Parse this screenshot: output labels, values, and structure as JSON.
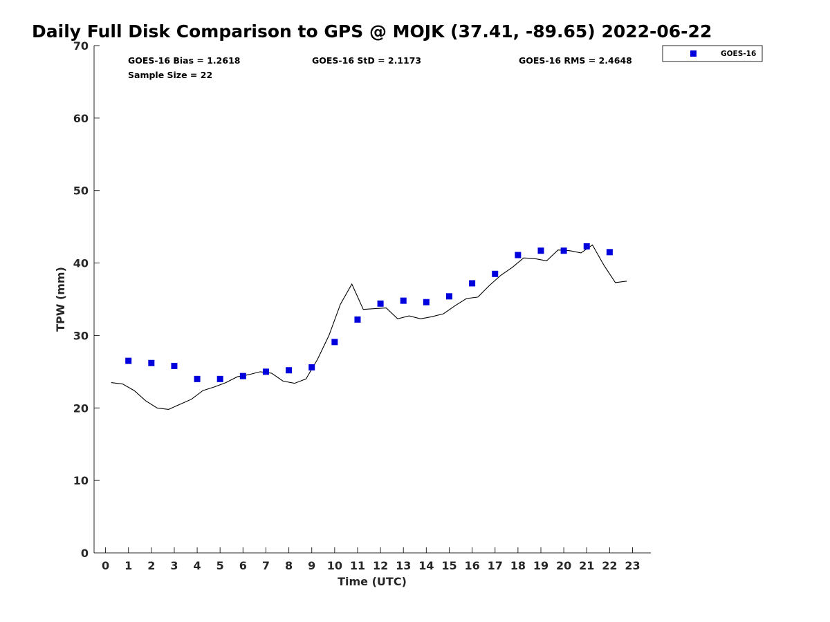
{
  "chart_data": {
    "type": "line",
    "title": "Daily Full Disk Comparison to GPS @ MOJK (37.41, -89.65) 2022-06-22",
    "xlabel": "Time (UTC)",
    "ylabel": "TPW (mm)",
    "xlim": [
      -0.5,
      23.8
    ],
    "ylim": [
      0,
      70
    ],
    "x_ticks": [
      "0",
      "1",
      "2",
      "3",
      "4",
      "5",
      "6",
      "7",
      "8",
      "9",
      "10",
      "11",
      "12",
      "13",
      "14",
      "15",
      "16",
      "17",
      "18",
      "19",
      "20",
      "21",
      "22",
      "23"
    ],
    "y_ticks": [
      "0",
      "10",
      "20",
      "30",
      "40",
      "50",
      "60",
      "70"
    ],
    "grid": false,
    "legend_position": "top-right outside",
    "stats": {
      "bias": "GOES-16 Bias = 1.2618",
      "std": "GOES-16 StD = 2.1173",
      "rms": "GOES-16 RMS = 2.4648",
      "sample": "Sample Size = 22"
    },
    "series": [
      {
        "type": "line",
        "color": "#000000",
        "x": [
          0.25,
          0.75,
          1.25,
          1.75,
          2.25,
          2.75,
          3.25,
          3.75,
          4.25,
          4.75,
          5.25,
          5.75,
          6.25,
          6.75,
          7.25,
          7.75,
          8.25,
          8.75,
          9.25,
          9.75,
          10.25,
          10.75,
          11.25,
          11.75,
          12.25,
          12.75,
          13.25,
          13.75,
          14.25,
          14.75,
          15.25,
          15.75,
          16.25,
          16.75,
          17.25,
          17.75,
          18.25,
          18.75,
          19.25,
          19.75,
          20.25,
          20.75,
          21.25,
          21.75,
          22.25,
          22.75
        ],
        "values": [
          23.5,
          23.3,
          22.4,
          21.0,
          20.0,
          19.8,
          20.5,
          21.2,
          22.4,
          22.9,
          23.5,
          24.3,
          24.6,
          25.0,
          24.8,
          23.7,
          23.4,
          24.0,
          26.7,
          30.0,
          34.3,
          37.1,
          33.6,
          33.7,
          33.8,
          32.3,
          32.7,
          32.3,
          32.6,
          33.0,
          34.1,
          35.1,
          35.3,
          36.9,
          38.3,
          39.4,
          40.7,
          40.6,
          40.3,
          41.8,
          41.7,
          41.4,
          42.5,
          39.7,
          37.3,
          37.5
        ]
      },
      {
        "name": "GOES-16",
        "type": "scatter",
        "color": "#0000dd",
        "marker": "square",
        "x": [
          1,
          2,
          3,
          4,
          5,
          6,
          7,
          8,
          9,
          10,
          11,
          12,
          13,
          14,
          15,
          16,
          17,
          18,
          19,
          20,
          21,
          22
        ],
        "values": [
          26.5,
          26.2,
          25.8,
          24.0,
          24.0,
          24.4,
          25.0,
          25.2,
          25.6,
          29.1,
          32.2,
          34.4,
          34.8,
          34.6,
          35.4,
          37.2,
          38.5,
          41.1,
          41.7,
          41.7,
          42.3,
          41.5
        ]
      }
    ]
  }
}
